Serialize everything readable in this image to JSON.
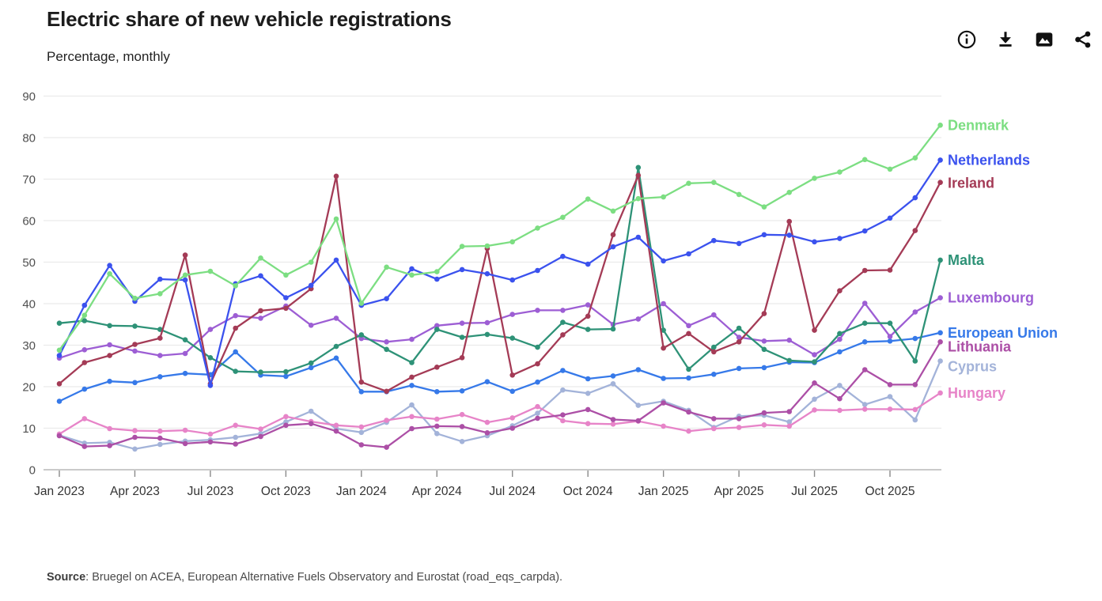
{
  "header": {
    "title": "Electric share of new vehicle registrations",
    "subtitle": "Percentage, monthly",
    "toolbar": {
      "info": "info",
      "download": "download",
      "image": "export-image",
      "share": "share"
    }
  },
  "footer": {
    "source_label": "Source",
    "source_rest": ": Bruegel on ACEA, European Alternative Fuels Observatory and Eurostat (road_eqs_carpda)."
  },
  "chart_data": {
    "type": "line",
    "title": "Electric share of new vehicle registrations",
    "subtitle": "Percentage, monthly",
    "xlabel": "",
    "ylabel": "Percentage",
    "ylim": [
      0,
      90
    ],
    "y_ticks": [
      0,
      10,
      20,
      30,
      40,
      50,
      60,
      70,
      80,
      90
    ],
    "grid": "horizontal",
    "legend_position": "right-end-labels",
    "x_tick_labels": [
      "Jan 2023",
      "Apr 2023",
      "Jul 2023",
      "Oct 2023",
      "Jan 2024",
      "Apr 2024",
      "Jul 2024",
      "Oct 2024",
      "Jan 2025",
      "Apr 2025",
      "Jul 2025",
      "Oct 2025"
    ],
    "months": [
      "Jan 2023",
      "Feb 2023",
      "Mar 2023",
      "Apr 2023",
      "May 2023",
      "Jun 2023",
      "Jul 2023",
      "Aug 2023",
      "Sep 2023",
      "Oct 2023",
      "Nov 2023",
      "Dec 2023",
      "Jan 2024",
      "Feb 2024",
      "Mar 2024",
      "Apr 2024",
      "May 2024",
      "Jun 2024",
      "Jul 2024",
      "Aug 2024",
      "Sep 2024",
      "Oct 2024",
      "Nov 2024",
      "Dec 2024",
      "Jan 2025",
      "Feb 2025",
      "Mar 2025",
      "Apr 2025",
      "May 2025",
      "Jun 2025",
      "Jul 2025",
      "Aug 2025",
      "Sep 2025",
      "Oct 2025",
      "Nov 2025",
      "Dec 2025"
    ],
    "series": [
      {
        "name": "Denmark",
        "color": "#7cde82",
        "values": [
          28.8,
          37.2,
          47.2,
          41.3,
          42.4,
          46.9,
          47.8,
          44.3,
          51.0,
          46.9,
          50.0,
          60.4,
          40.1,
          48.8,
          46.9,
          47.7,
          53.8,
          53.9,
          54.9,
          58.2,
          60.8,
          65.2,
          62.3,
          65.3,
          65.7,
          69.0,
          69.2,
          66.3,
          63.3,
          66.8,
          70.2,
          71.7,
          74.7,
          72.4,
          75.1,
          83.0
        ]
      },
      {
        "name": "Netherlands",
        "color": "#3b52ee",
        "values": [
          27.5,
          39.6,
          49.2,
          40.6,
          45.9,
          45.7,
          20.3,
          44.8,
          46.7,
          41.4,
          44.4,
          50.5,
          39.6,
          41.2,
          48.4,
          45.9,
          48.2,
          47.2,
          45.7,
          48.0,
          51.4,
          49.5,
          53.7,
          56.0,
          50.3,
          52.0,
          55.2,
          54.5,
          56.6,
          56.5,
          54.9,
          55.7,
          57.5,
          60.6,
          65.5,
          74.6
        ]
      },
      {
        "name": "Ireland",
        "color": "#a43b56",
        "values": [
          20.7,
          25.8,
          27.5,
          30.2,
          31.7,
          51.7,
          20.7,
          34.1,
          38.3,
          38.9,
          43.6,
          70.7,
          21.1,
          18.9,
          22.3,
          24.7,
          27.0,
          53.3,
          22.8,
          25.5,
          32.5,
          37.0,
          56.6,
          70.9,
          29.3,
          32.8,
          28.4,
          30.8,
          37.6,
          59.8,
          33.6,
          43.1,
          48.0,
          48.1,
          57.6,
          69.2
        ]
      },
      {
        "name": "Malta",
        "color": "#2e9277",
        "values": [
          35.3,
          35.9,
          34.7,
          34.6,
          33.8,
          31.3,
          27.0,
          23.7,
          23.5,
          23.6,
          25.7,
          29.7,
          32.5,
          29.0,
          25.8,
          33.8,
          31.9,
          32.6,
          31.7,
          29.5,
          35.5,
          33.8,
          33.9,
          72.8,
          33.6,
          24.2,
          29.5,
          34.1,
          29.0,
          26.3,
          26.0,
          32.8,
          35.3,
          35.3,
          26.2,
          50.5
        ]
      },
      {
        "name": "Luxembourg",
        "color": "#9d5ed4",
        "values": [
          26.9,
          28.9,
          30.1,
          28.6,
          27.5,
          28.0,
          33.8,
          37.1,
          36.5,
          39.4,
          34.8,
          36.5,
          31.6,
          30.8,
          31.4,
          34.7,
          35.3,
          35.4,
          37.4,
          38.4,
          38.4,
          39.7,
          35.0,
          36.3,
          40.0,
          34.7,
          37.3,
          31.9,
          31.0,
          31.2,
          27.7,
          31.4,
          40.1,
          32.1,
          38.0,
          41.4
        ]
      },
      {
        "name": "European Union",
        "color": "#3679e9",
        "values": [
          16.5,
          19.4,
          21.3,
          21.0,
          22.4,
          23.2,
          22.9,
          28.4,
          22.8,
          22.5,
          24.6,
          26.9,
          18.8,
          18.8,
          20.3,
          18.8,
          19.0,
          21.2,
          18.9,
          21.1,
          23.9,
          21.9,
          22.6,
          24.1,
          22.0,
          22.1,
          23.0,
          24.4,
          24.6,
          25.9,
          25.8,
          28.4,
          30.8,
          31.0,
          31.6,
          33.0
        ]
      },
      {
        "name": "Lithuania",
        "color": "#ac4fa6",
        "values": [
          8.2,
          5.6,
          5.8,
          7.8,
          7.6,
          6.3,
          6.7,
          6.2,
          8.0,
          10.7,
          11.1,
          9.3,
          6.0,
          5.4,
          9.9,
          10.5,
          10.4,
          8.9,
          10.0,
          12.4,
          13.2,
          14.5,
          12.1,
          11.8,
          16.1,
          13.9,
          12.3,
          12.3,
          13.7,
          14.0,
          20.9,
          17.1,
          24.1,
          20.5,
          20.5,
          30.8
        ]
      },
      {
        "name": "Cyprus",
        "color": "#a3b3d9",
        "values": [
          8.3,
          6.4,
          6.6,
          5.0,
          6.1,
          6.9,
          7.2,
          7.8,
          8.7,
          11.5,
          14.1,
          9.9,
          9.0,
          11.4,
          15.6,
          8.7,
          6.8,
          8.2,
          10.6,
          13.6,
          19.2,
          18.4,
          20.7,
          15.5,
          16.5,
          14.3,
          10.2,
          12.9,
          13.1,
          11.5,
          17.0,
          20.3,
          15.7,
          17.6,
          12.0,
          26.2
        ]
      },
      {
        "name": "Hungary",
        "color": "#e784c8",
        "values": [
          8.6,
          12.3,
          9.9,
          9.4,
          9.3,
          9.5,
          8.6,
          10.7,
          9.8,
          12.8,
          11.6,
          10.7,
          10.3,
          11.9,
          12.8,
          12.2,
          13.3,
          11.4,
          12.5,
          15.2,
          11.8,
          11.1,
          11.0,
          11.7,
          10.5,
          9.3,
          9.9,
          10.2,
          10.8,
          10.5,
          14.4,
          14.3,
          14.6,
          14.6,
          14.5,
          18.5
        ]
      }
    ]
  }
}
